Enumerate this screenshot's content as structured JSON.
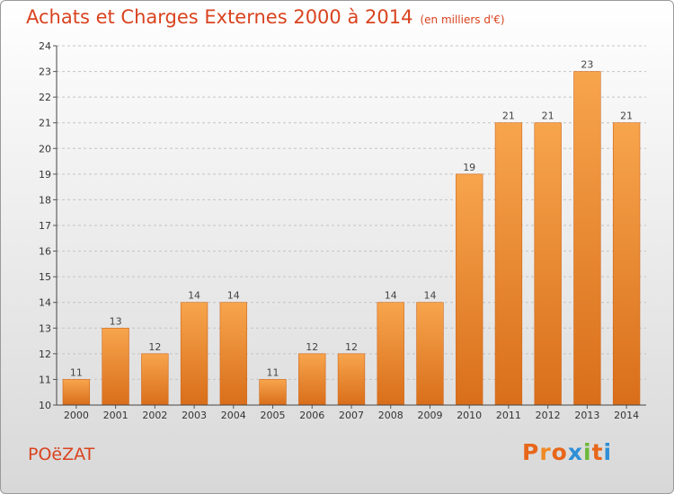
{
  "header": {
    "title": "Achats et Charges Externes 2000 à 2014",
    "subtitle": "(en milliers d'€)"
  },
  "place_name": "POëZAT",
  "brand": {
    "letters": [
      "P",
      "r",
      "o",
      "x",
      "i",
      "t",
      "i"
    ],
    "colors": [
      "#e8661a",
      "#f08a24",
      "#e8661a",
      "#2e8fd6",
      "#6cb83a",
      "#e8661a",
      "#2e8fd6"
    ]
  },
  "chart_data": {
    "type": "bar",
    "title": "Achats et Charges Externes 2000 à 2014",
    "subtitle": "(en milliers d'€)",
    "categories": [
      "2000",
      "2001",
      "2002",
      "2003",
      "2004",
      "2005",
      "2006",
      "2007",
      "2008",
      "2009",
      "2010",
      "2011",
      "2012",
      "2013",
      "2014"
    ],
    "values": [
      11,
      13,
      12,
      14,
      14,
      11,
      12,
      12,
      14,
      14,
      19,
      21,
      21,
      23,
      21
    ],
    "data_labels": [
      "11",
      "13",
      "12",
      "14",
      "14",
      "11",
      "12",
      "12",
      "14",
      "14",
      "19",
      "21",
      "21",
      "23",
      "21"
    ],
    "xlabel": "",
    "ylabel": "",
    "ylim": [
      10,
      24
    ],
    "yticks": [
      "10",
      "11",
      "12",
      "13",
      "14",
      "15",
      "16",
      "17",
      "18",
      "19",
      "20",
      "21",
      "22",
      "23",
      "24"
    ],
    "grid": true,
    "bar_color": "#f08a2c"
  }
}
